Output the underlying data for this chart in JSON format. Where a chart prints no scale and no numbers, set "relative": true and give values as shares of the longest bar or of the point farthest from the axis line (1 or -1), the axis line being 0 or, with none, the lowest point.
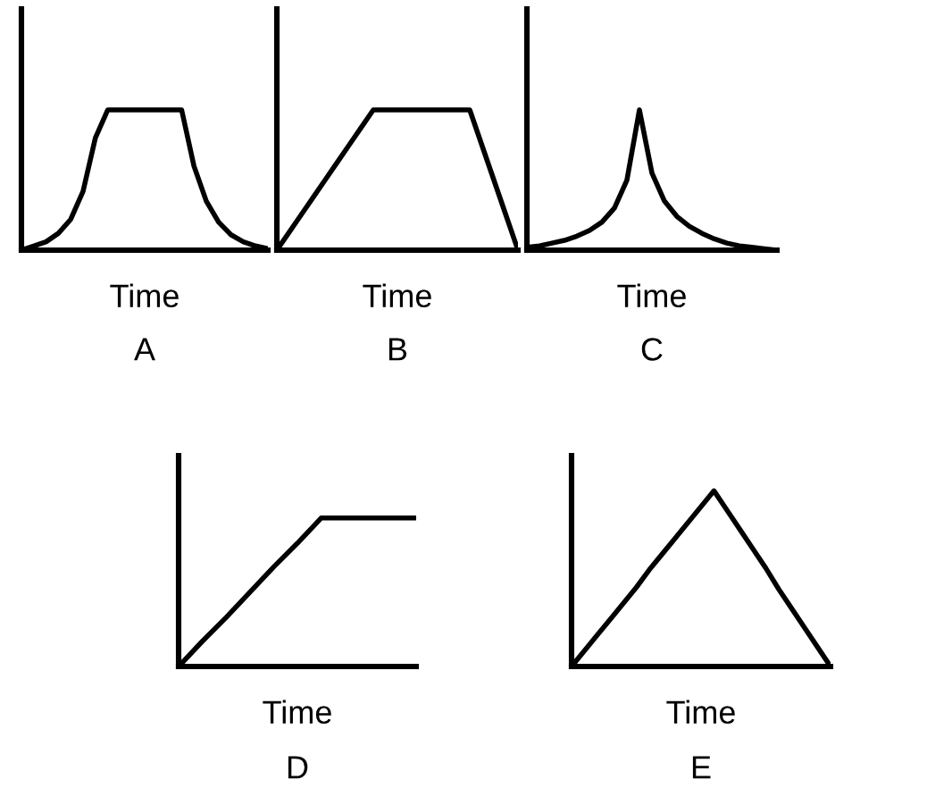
{
  "chart_data": [
    {
      "type": "line",
      "relative": true,
      "title": "A",
      "xlabel": "Time",
      "color": "#000000",
      "categories": [
        null,
        null,
        null,
        null,
        null,
        null,
        null,
        null,
        null,
        null,
        null,
        null,
        null,
        null,
        null,
        null,
        null,
        null,
        null,
        null,
        null
      ],
      "values": [
        0.0,
        0.03,
        0.06,
        0.12,
        0.22,
        0.42,
        0.8,
        1,
        1,
        1,
        1,
        1,
        1,
        1,
        0.6,
        0.35,
        0.2,
        0.11,
        0.06,
        0.03,
        0.01
      ]
    },
    {
      "type": "line",
      "relative": true,
      "title": "B",
      "xlabel": "Time",
      "color": "#000000",
      "categories": [
        null,
        null,
        null,
        null,
        null,
        null,
        null,
        null,
        null,
        null,
        null,
        null,
        null,
        null,
        null,
        null,
        null,
        null,
        null,
        null,
        null
      ],
      "values": [
        0,
        0.125,
        0.25,
        0.375,
        0.5,
        0.625,
        0.75,
        0.875,
        1,
        1,
        1,
        1,
        1,
        1,
        1,
        1,
        1,
        0.75,
        0.5,
        0.25,
        0
      ]
    },
    {
      "type": "line",
      "relative": true,
      "title": "C",
      "xlabel": "Time",
      "color": "#000000",
      "categories": [
        null,
        null,
        null,
        null,
        null,
        null,
        null,
        null,
        null,
        null,
        null,
        null,
        null,
        null,
        null,
        null,
        null,
        null,
        null,
        null,
        null
      ],
      "values": [
        0.02,
        0.03,
        0.05,
        0.07,
        0.1,
        0.14,
        0.2,
        0.3,
        0.5,
        1,
        0.55,
        0.35,
        0.24,
        0.17,
        0.12,
        0.08,
        0.05,
        0.03,
        0.02,
        0.01,
        0
      ]
    },
    {
      "type": "line",
      "relative": true,
      "title": "D",
      "xlabel": "Time",
      "color": "#000000",
      "categories": [
        null,
        null,
        null,
        null,
        null,
        null,
        null,
        null,
        null,
        null,
        null
      ],
      "values": [
        0,
        0.17,
        0.33,
        0.5,
        0.67,
        0.83,
        1,
        1,
        1,
        1,
        1
      ]
    },
    {
      "type": "line",
      "relative": true,
      "title": "E",
      "xlabel": "Time",
      "color": "#000000",
      "categories": [
        null,
        null,
        null,
        null,
        null,
        null,
        null,
        null,
        null,
        null,
        null,
        null,
        null,
        null,
        null,
        null,
        null,
        null,
        null,
        null,
        null
      ],
      "values": [
        0,
        0.09,
        0.18,
        0.27,
        0.36,
        0.45,
        0.55,
        0.64,
        0.73,
        0.82,
        0.91,
        1,
        0.89,
        0.78,
        0.67,
        0.56,
        0.44,
        0.33,
        0.22,
        0.11,
        0
      ]
    }
  ]
}
